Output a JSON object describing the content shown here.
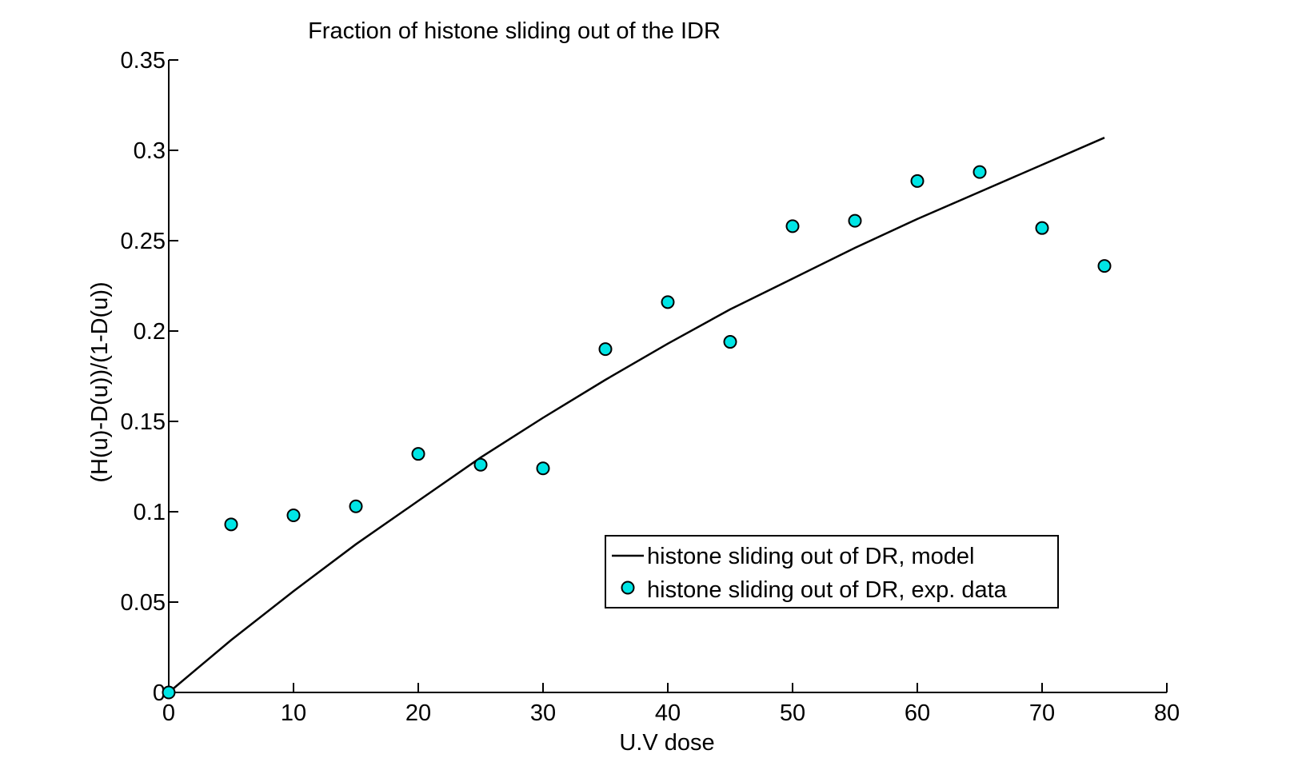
{
  "chart_data": {
    "type": "line",
    "title": "Fraction of histone sliding out of the IDR",
    "xlabel": "U.V dose",
    "ylabel": "(H(u)-D(u))/(1-D(u))",
    "xlim": [
      0,
      80
    ],
    "ylim": [
      0,
      0.35
    ],
    "xticks": [
      0,
      10,
      20,
      30,
      40,
      50,
      60,
      70,
      80
    ],
    "xtick_labels": [
      "0",
      "10",
      "20",
      "30",
      "40",
      "50",
      "60",
      "70",
      "80"
    ],
    "yticks": [
      0,
      0.05,
      0.1,
      0.15,
      0.2,
      0.25,
      0.3,
      0.35
    ],
    "ytick_labels": [
      "0",
      "0.05",
      "0.1",
      "0.15",
      "0.2",
      "0.25",
      "0.3",
      "0.35"
    ],
    "grid": false,
    "legend_position": "bottom-right",
    "series": [
      {
        "name": "histone sliding out of DR, model",
        "kind": "line",
        "color": "#000000",
        "x": [
          0,
          5,
          10,
          15,
          20,
          25,
          30,
          35,
          40,
          45,
          50,
          55,
          60,
          65,
          70,
          75
        ],
        "y": [
          0,
          0.029,
          0.056,
          0.082,
          0.106,
          0.13,
          0.152,
          0.173,
          0.193,
          0.212,
          0.229,
          0.246,
          0.262,
          0.277,
          0.292,
          0.307
        ]
      },
      {
        "name": "histone sliding out of DR, exp. data",
        "kind": "scatter",
        "color": "#00e5e5",
        "x": [
          0,
          5,
          10,
          15,
          20,
          25,
          30,
          35,
          40,
          45,
          50,
          55,
          60,
          65,
          70,
          75
        ],
        "y": [
          0,
          0.093,
          0.098,
          0.103,
          0.132,
          0.126,
          0.124,
          0.19,
          0.216,
          0.194,
          0.258,
          0.261,
          0.283,
          0.288,
          0.257,
          0.236
        ]
      }
    ]
  }
}
